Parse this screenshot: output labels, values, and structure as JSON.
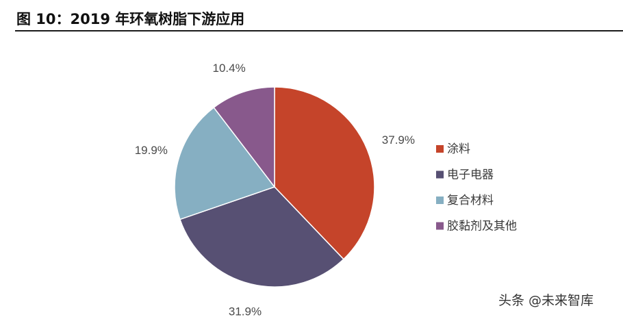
{
  "header": {
    "title": "图 10：2019 年环氧树脂下游应用"
  },
  "chart_data": {
    "type": "pie",
    "title": "",
    "slices": [
      {
        "label": "涂料",
        "value": 37.9,
        "display": "37.9%",
        "color": "#c5442a"
      },
      {
        "label": "电子电器",
        "value": 31.9,
        "display": "31.9%",
        "color": "#575073"
      },
      {
        "label": "复合材料",
        "value": 19.9,
        "display": "19.9%",
        "color": "#86afc2"
      },
      {
        "label": "胶黏剂及其他",
        "value": 10.4,
        "display": "10.4%",
        "color": "#88598c"
      }
    ],
    "legend_position": "right"
  },
  "watermark": "头条 @未来智库"
}
